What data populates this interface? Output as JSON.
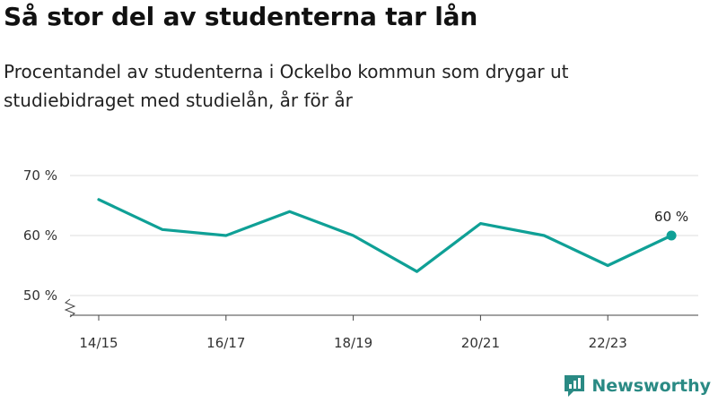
{
  "title": "Så stor del av studenterna tar lån",
  "subtitle": "Procentandel av studenterna i Ockelbo kommun som drygar ut studiebidraget med studielån, år för år",
  "brand": "Newsworthy",
  "colors": {
    "line": "#0fa096",
    "grid": "#dddddd",
    "axis": "#444444",
    "brand": "#2a8a84"
  },
  "chart_data": {
    "type": "line",
    "title": "Så stor del av studenterna tar lån",
    "x": [
      "14/15",
      "15/16",
      "16/17",
      "17/18",
      "18/19",
      "19/20",
      "20/21",
      "21/22",
      "22/23",
      "23/24"
    ],
    "x_tick_labels": [
      "14/15",
      "16/17",
      "18/19",
      "20/21",
      "22/23"
    ],
    "series": [
      {
        "values": [
          66,
          61,
          60,
          64,
          60,
          54,
          62,
          60,
          55,
          60
        ]
      }
    ],
    "ylim": [
      50,
      70
    ],
    "y_ticks": [
      50,
      60,
      70
    ],
    "y_tick_labels": [
      "50 %",
      "60 %",
      "70 %"
    ],
    "y_axis_broken": true,
    "grid": true,
    "annotations": [
      {
        "x": "23/24",
        "text": "60 %"
      }
    ]
  }
}
